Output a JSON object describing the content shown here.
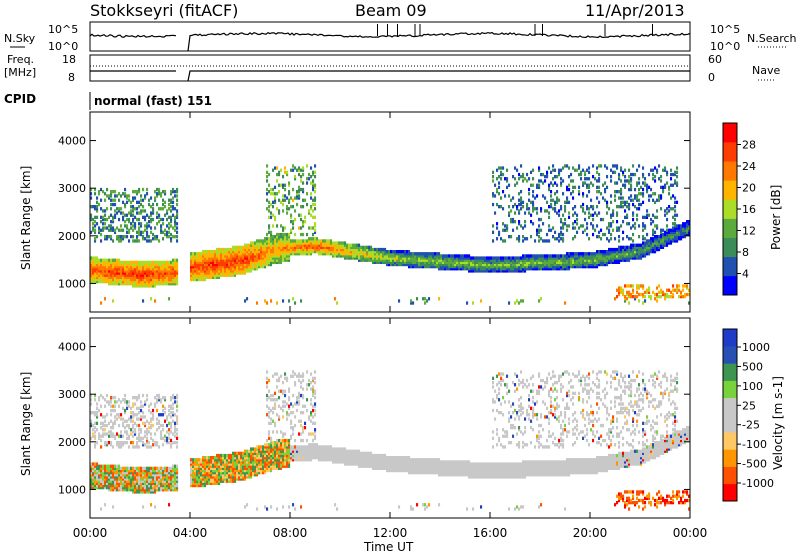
{
  "header": {
    "station": "Stokkseyri (fitACF)",
    "beam": "Beam 09",
    "date": "11/Apr/2013"
  },
  "nsky_panel": {
    "left_label": "N.Sky",
    "left_ticks": [
      "10^5",
      "10^0"
    ],
    "right_ticks": [
      "10^5",
      "10^0"
    ],
    "right_label": "N.Search"
  },
  "freq_panel": {
    "left_label_line1": "Freq.",
    "left_label_line2": "[MHz]",
    "left_ticks": [
      "18",
      "8"
    ],
    "right_ticks": [
      "60",
      "0"
    ],
    "right_label": "Nave"
  },
  "cpid": {
    "label": "CPID",
    "value": "normal (fast) 151"
  },
  "x_axis": {
    "ticks": [
      "00:00",
      "04:00",
      "08:00",
      "12:00",
      "16:00",
      "20:00",
      "00:00"
    ],
    "label": "Time UT"
  },
  "colors": {
    "power_scale": [
      "#0000ff",
      "#2050b0",
      "#3c8c5a",
      "#5aaa3c",
      "#aadc28",
      "#ffb400",
      "#ff7800",
      "#ff3c00",
      "#ff0000"
    ],
    "velocity_scale": [
      "#ff0000",
      "#ff5000",
      "#ff9600",
      "#ffc864",
      "#c8c8c8",
      "#c8c8c8",
      "#78d23c",
      "#3c9650",
      "#2850b4",
      "#1e3cc8"
    ],
    "gray_scatter": "#c8c8c8"
  },
  "chart_data": [
    {
      "type": "heatmap",
      "name": "power",
      "ylabel": "Slant Range [km]",
      "yticks": [
        1000,
        2000,
        3000,
        4000
      ],
      "ylim": [
        400,
        4600
      ],
      "xlim_hours": [
        0,
        24
      ],
      "colorbar": {
        "label": "Power [dB]",
        "ticks": [
          4,
          8,
          12,
          16,
          20,
          24,
          28
        ],
        "range": [
          0,
          32
        ]
      },
      "data_gap_hours": [
        3.5,
        4.0
      ],
      "main_band_center_km": [
        [
          0,
          1300
        ],
        [
          2,
          1200
        ],
        [
          3.5,
          1250
        ],
        [
          4,
          1350
        ],
        [
          6,
          1500
        ],
        [
          7.5,
          1750
        ],
        [
          9,
          1800
        ],
        [
          12,
          1550
        ],
        [
          16,
          1400
        ],
        [
          20,
          1500
        ],
        [
          22,
          1700
        ],
        [
          24,
          2200
        ]
      ],
      "main_band_power_db": [
        [
          0,
          26
        ],
        [
          2,
          28
        ],
        [
          3.5,
          26
        ],
        [
          4,
          27
        ],
        [
          6,
          28
        ],
        [
          7.5,
          22
        ],
        [
          9,
          26
        ],
        [
          12,
          16
        ],
        [
          16,
          14
        ],
        [
          20,
          14
        ],
        [
          22,
          12
        ],
        [
          24,
          10
        ]
      ]
    },
    {
      "type": "heatmap",
      "name": "velocity",
      "ylabel": "Slant Range [km]",
      "yticks": [
        1000,
        2000,
        3000,
        4000
      ],
      "ylim": [
        400,
        4600
      ],
      "xlim_hours": [
        0,
        24
      ],
      "colorbar": {
        "label": "Velocity [m s-1]",
        "ticks": [
          1000,
          500,
          100,
          25,
          -25,
          -100,
          -500,
          -1000
        ]
      },
      "data_gap_hours": [
        3.5,
        4.0
      ]
    }
  ]
}
